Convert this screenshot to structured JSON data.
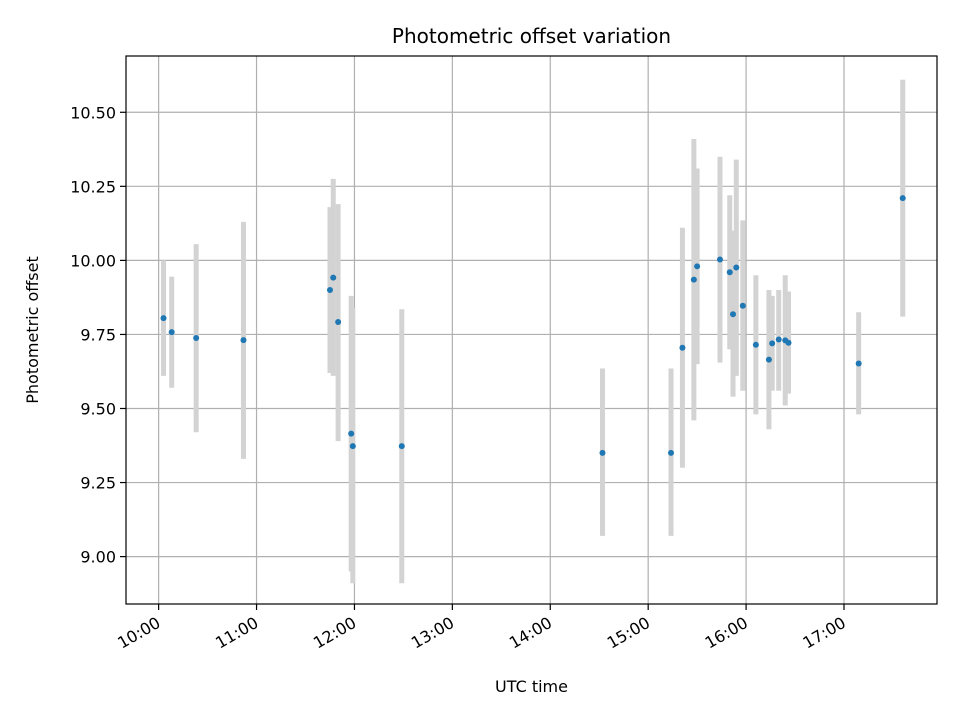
{
  "chart_data": {
    "type": "scatter",
    "title": "Photometric offset variation",
    "xlabel": "UTC time",
    "ylabel": "Photometric offset",
    "x_ticks": [
      "10:00",
      "11:00",
      "12:00",
      "13:00",
      "14:00",
      "15:00",
      "16:00",
      "17:00"
    ],
    "y_ticks": [
      "9.00",
      "9.25",
      "9.50",
      "9.75",
      "10.00",
      "10.25",
      "10.50"
    ],
    "xlim": [
      "09:40",
      "17:57"
    ],
    "ylim": [
      8.84,
      10.69
    ],
    "grid": true,
    "colors": {
      "point": "#1f77b4",
      "errorbar": "#d3d3d3",
      "grid": "#b0b0b0"
    },
    "points": [
      {
        "t": "10:03",
        "y": 9.805,
        "lo": 9.61,
        "hi": 10.0
      },
      {
        "t": "10:08",
        "y": 9.758,
        "lo": 9.57,
        "hi": 9.945
      },
      {
        "t": "10:23",
        "y": 9.738,
        "lo": 9.42,
        "hi": 10.055
      },
      {
        "t": "10:52",
        "y": 9.731,
        "lo": 9.33,
        "hi": 10.13
      },
      {
        "t": "11:45",
        "y": 9.9,
        "lo": 9.62,
        "hi": 10.18
      },
      {
        "t": "11:47",
        "y": 9.942,
        "lo": 9.61,
        "hi": 10.275
      },
      {
        "t": "11:50",
        "y": 9.792,
        "lo": 9.39,
        "hi": 10.19
      },
      {
        "t": "11:58",
        "y": 9.415,
        "lo": 8.95,
        "hi": 9.88
      },
      {
        "t": "11:59",
        "y": 9.373,
        "lo": 8.91,
        "hi": 9.84
      },
      {
        "t": "12:29",
        "y": 9.373,
        "lo": 8.91,
        "hi": 9.835
      },
      {
        "t": "14:32",
        "y": 9.35,
        "lo": 9.07,
        "hi": 9.635
      },
      {
        "t": "15:14",
        "y": 9.35,
        "lo": 9.07,
        "hi": 9.635
      },
      {
        "t": "15:21",
        "y": 9.705,
        "lo": 9.3,
        "hi": 10.11
      },
      {
        "t": "15:28",
        "y": 9.935,
        "lo": 9.46,
        "hi": 10.41
      },
      {
        "t": "15:30",
        "y": 9.98,
        "lo": 9.65,
        "hi": 10.31
      },
      {
        "t": "15:44",
        "y": 10.003,
        "lo": 9.655,
        "hi": 10.35
      },
      {
        "t": "15:50",
        "y": 9.96,
        "lo": 9.7,
        "hi": 10.22
      },
      {
        "t": "15:52",
        "y": 9.818,
        "lo": 9.54,
        "hi": 10.1
      },
      {
        "t": "15:54",
        "y": 9.976,
        "lo": 9.61,
        "hi": 10.34
      },
      {
        "t": "15:58",
        "y": 9.847,
        "lo": 9.56,
        "hi": 10.135
      },
      {
        "t": "16:06",
        "y": 9.715,
        "lo": 9.48,
        "hi": 9.95
      },
      {
        "t": "16:14",
        "y": 9.665,
        "lo": 9.43,
        "hi": 9.9
      },
      {
        "t": "16:16",
        "y": 9.72,
        "lo": 9.56,
        "hi": 9.88
      },
      {
        "t": "16:20",
        "y": 9.733,
        "lo": 9.56,
        "hi": 9.9
      },
      {
        "t": "16:24",
        "y": 9.73,
        "lo": 9.51,
        "hi": 9.95
      },
      {
        "t": "16:26",
        "y": 9.722,
        "lo": 9.55,
        "hi": 9.895
      },
      {
        "t": "17:09",
        "y": 9.652,
        "lo": 9.48,
        "hi": 9.825
      },
      {
        "t": "17:36",
        "y": 10.21,
        "lo": 9.81,
        "hi": 10.61
      }
    ]
  }
}
